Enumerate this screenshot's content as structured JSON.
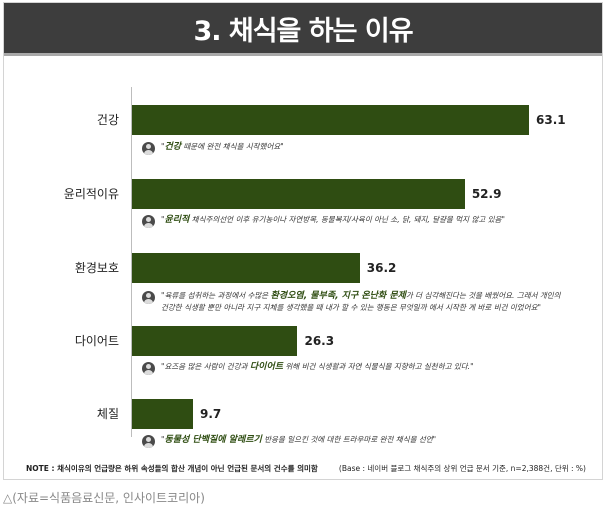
{
  "title": "3. 채식을 하는 이유",
  "chart_data": {
    "type": "bar",
    "orientation": "horizontal",
    "categories": [
      "건강",
      "윤리적이유",
      "환경보호",
      "다이어트",
      "체질"
    ],
    "values": [
      63.1,
      52.9,
      36.2,
      26.3,
      9.7
    ],
    "value_labels": [
      "63.1",
      "52.9",
      "36.2",
      "26.3",
      "9.7"
    ],
    "xlim": [
      0,
      70
    ],
    "bar_color": "#2f4d12",
    "grid": false,
    "legend": "none"
  },
  "quotes": [
    {
      "pre": "\"",
      "bold": "건강",
      "post": " 때문에 완전 채식을 시작했어요\"",
      "line2": ""
    },
    {
      "pre": "\"",
      "bold": "윤리적",
      "post": " 채식주의선언 이후 유기농이나 자연방목, 동물복지/사육이 아닌 소, 닭, 돼지, 달걀을 먹지 않고 있음\"",
      "line2": ""
    },
    {
      "pre": "\"육류를 섭취하는 과정에서 수많은 ",
      "bold": "환경오염, 물부족, 지구 온난화 문제",
      "post": "가 더 심각해진다는 것을 배웠어요. 그래서 개인의",
      "line2": "건강한 식생활 뿐만 아니라 지구 지체를 생각했을 때 내가 할 수 있는 행동은 무엇일까 에서 시작한 게 바로 비건 이었어요\""
    },
    {
      "pre": "\"요즈음 많은 사람이 건강과 ",
      "bold": "다이어트",
      "post": " 위해 비건 식생활과 자연 식물식을 지향하고 실천하고 있다.\"",
      "line2": ""
    },
    {
      "pre": "\"",
      "bold": "동물성 단백질에 알레르기",
      "post": " 반응을 일으킨 것에 대한 트라우마로 완전 채식을 선언\"",
      "line2": ""
    }
  ],
  "note": {
    "left": "NOTE : 채식이유의 언급량은 하위 속성들의 합산 개념이 아닌 언급된 문서의 건수를 의미함",
    "right": "(Base : 네이버 블로그 채식주의 상위 언급 문서 기준, n=2,388건, 단위 : %)"
  },
  "source": "△(자료=식품음료신문, 인사이트코리아)"
}
